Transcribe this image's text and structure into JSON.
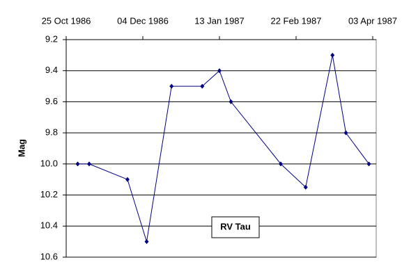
{
  "chart_data": {
    "type": "line",
    "title": "RV Tau",
    "y_label": "Mag",
    "x": [
      "1986-10-31",
      "1986-11-06",
      "1986-11-26",
      "1986-12-06",
      "1986-12-19",
      "1987-01-04",
      "1987-01-13",
      "1987-01-19",
      "1987-02-14",
      "1987-02-27",
      "1987-03-13",
      "1987-03-20",
      "1987-04-01"
    ],
    "series": [
      {
        "name": "RV Tau",
        "color": "#000080",
        "values": [
          10.0,
          10.0,
          10.1,
          10.5,
          9.5,
          9.5,
          9.4,
          9.6,
          10.0,
          10.15,
          9.3,
          9.8,
          10.0
        ]
      }
    ],
    "xlim": [
      "1986-10-25",
      "1987-04-03"
    ],
    "xticks": [
      {
        "value": "1986-10-25",
        "label": "25 Oct 1986"
      },
      {
        "value": "1986-12-04",
        "label": "04 Dec 1986"
      },
      {
        "value": "1987-01-13",
        "label": "13 Jan 1987"
      },
      {
        "value": "1987-02-22",
        "label": "22 Feb 1987"
      },
      {
        "value": "1987-04-03",
        "label": "03 Apr 1987"
      }
    ],
    "ylim": [
      10.6,
      9.2
    ],
    "yticks": [
      9.2,
      9.4,
      9.6,
      9.8,
      {
        "value": 10,
        "label": "10.0"
      },
      10.2,
      10.4,
      10.6
    ],
    "grid": true
  }
}
